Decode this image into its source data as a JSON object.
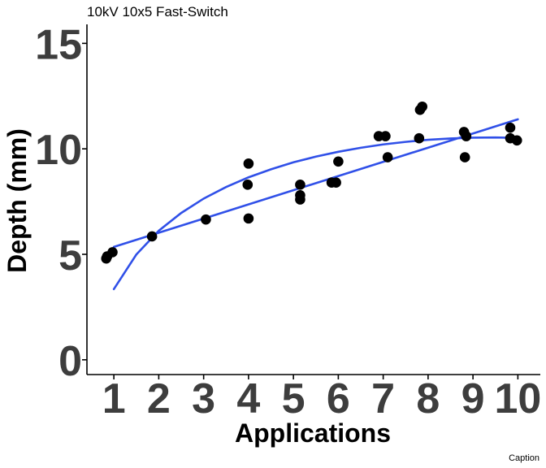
{
  "chart_data": {
    "type": "scatter",
    "title": "10kV 10x5 Fast-Switch",
    "xlabel": "Applications",
    "ylabel": "Depth (mm)",
    "caption": "Caption",
    "xlim": [
      0.4,
      10.5
    ],
    "ylim": [
      -0.7,
      15.9
    ],
    "x_ticks": [
      1,
      2,
      3,
      4,
      5,
      6,
      7,
      8,
      9,
      10
    ],
    "y_ticks": [
      0,
      5,
      10,
      15
    ],
    "grid": false,
    "points": [
      {
        "x": 0.83,
        "y": 4.8
      },
      {
        "x": 0.85,
        "y": 4.9
      },
      {
        "x": 0.97,
        "y": 5.1
      },
      {
        "x": 1.85,
        "y": 5.85
      },
      {
        "x": 3.05,
        "y": 6.65
      },
      {
        "x": 4.0,
        "y": 9.3
      },
      {
        "x": 3.98,
        "y": 8.3
      },
      {
        "x": 4.0,
        "y": 6.7
      },
      {
        "x": 5.15,
        "y": 8.3
      },
      {
        "x": 5.15,
        "y": 7.8
      },
      {
        "x": 5.15,
        "y": 7.6
      },
      {
        "x": 5.85,
        "y": 8.4
      },
      {
        "x": 5.95,
        "y": 8.4
      },
      {
        "x": 6.0,
        "y": 9.4
      },
      {
        "x": 6.9,
        "y": 10.6
      },
      {
        "x": 7.05,
        "y": 10.6
      },
      {
        "x": 7.1,
        "y": 9.6
      },
      {
        "x": 7.8,
        "y": 10.5
      },
      {
        "x": 7.82,
        "y": 11.85
      },
      {
        "x": 7.87,
        "y": 12.0
      },
      {
        "x": 8.8,
        "y": 10.8
      },
      {
        "x": 8.85,
        "y": 10.6
      },
      {
        "x": 8.82,
        "y": 9.6
      },
      {
        "x": 9.83,
        "y": 11.0
      },
      {
        "x": 9.83,
        "y": 10.5
      },
      {
        "x": 9.98,
        "y": 10.4
      }
    ],
    "fits": [
      {
        "type": "linear",
        "color": "#3050e8",
        "x": [
          1,
          10
        ],
        "y": [
          5.35,
          11.4
        ]
      },
      {
        "type": "logarithmic",
        "color": "#3050e8",
        "x": [
          1,
          1.5,
          2,
          2.5,
          3,
          3.5,
          4,
          4.5,
          5,
          5.5,
          6,
          6.5,
          7,
          7.5,
          8,
          8.5,
          9,
          9.5,
          10
        ],
        "y": [
          3.35,
          4.99,
          6.12,
          6.96,
          7.64,
          8.19,
          8.65,
          9.03,
          9.36,
          9.63,
          9.86,
          10.05,
          10.21,
          10.33,
          10.43,
          10.49,
          10.53,
          10.54,
          10.52
        ]
      }
    ],
    "colors": {
      "points": "#000000",
      "fit": "#3050e8",
      "ticks": "#3d3d3d"
    }
  }
}
